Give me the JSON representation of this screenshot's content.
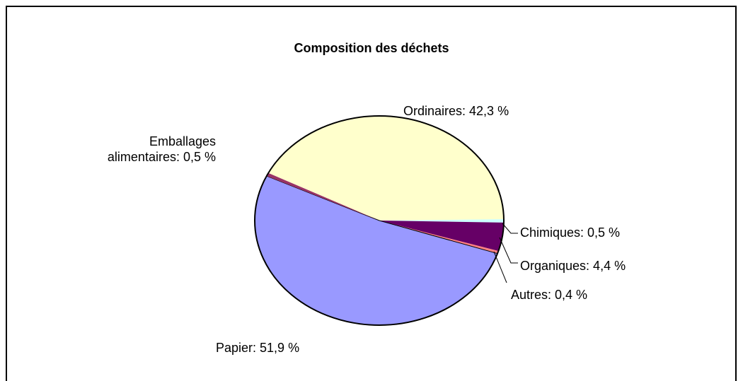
{
  "chart_data": {
    "type": "pie",
    "title": "Composition des déchets",
    "values": [
      42.3,
      0.5,
      4.4,
      0.4,
      51.9,
      0.5
    ],
    "value_labels": [
      "Ordinaires: 42,3 %",
      "Chimiques: 0,5 %",
      "Organiques: 4,4 %",
      "Autres: 0,4 %",
      "Papier: 51,9 %",
      "Emballages alimentaires: 0,5 %"
    ],
    "colors": [
      "#ffffcc",
      "#ccffff",
      "#660066",
      "#ff8080",
      "#9999ff",
      "#993366"
    ]
  }
}
